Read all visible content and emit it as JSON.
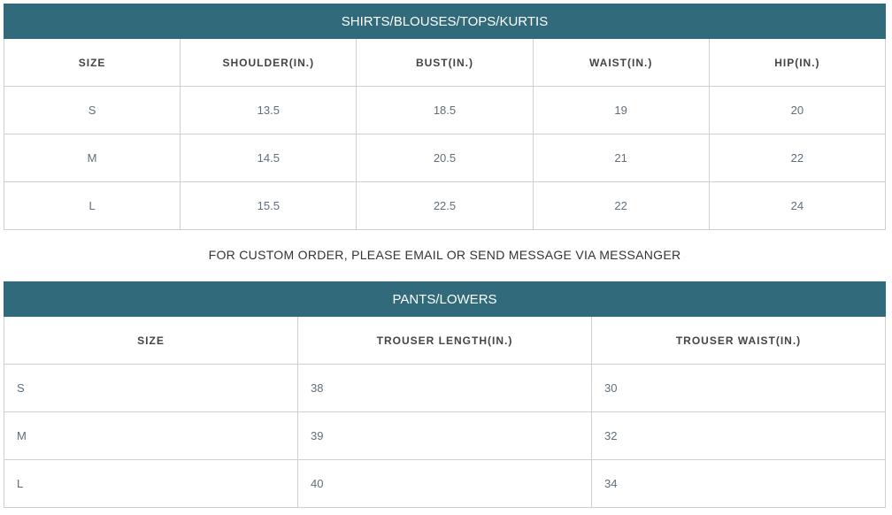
{
  "tops": {
    "title": "SHIRTS/BLOUSES/TOPS/KURTIS",
    "headers": [
      "SIZE",
      "SHOULDER(IN.)",
      "BUST(IN.)",
      "WAIST(IN.)",
      "HIP(IN.)"
    ],
    "rows": [
      [
        "S",
        "13.5",
        "18.5",
        "19",
        "20"
      ],
      [
        "M",
        "14.5",
        "20.5",
        "21",
        "22"
      ],
      [
        "L",
        "15.5",
        "22.5",
        "22",
        "24"
      ]
    ]
  },
  "message": "FOR CUSTOM ORDER, PLEASE EMAIL OR SEND MESSAGE VIA MESSANGER",
  "lowers": {
    "title": "PANTS/LOWERS",
    "headers": [
      "SIZE",
      "TROUSER LENGTH(IN.)",
      "TROUSER WAIST(IN.)"
    ],
    "rows": [
      [
        "S",
        "38",
        "30"
      ],
      [
        "M",
        "39",
        "32"
      ],
      [
        "L",
        "40",
        "34"
      ]
    ]
  },
  "colors": {
    "header_bg": "#306a7b"
  }
}
